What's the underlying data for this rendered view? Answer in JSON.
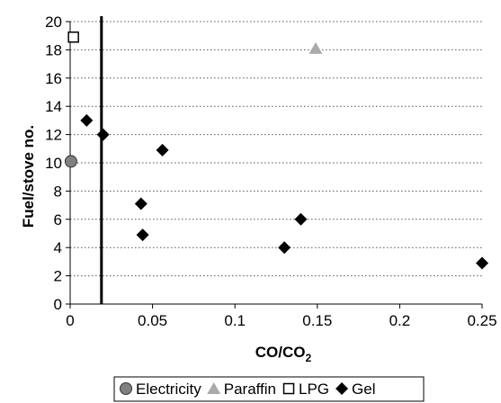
{
  "chart_data": {
    "type": "scatter",
    "xlabel_main": "CO/CO",
    "xlabel_sub": "2",
    "ylabel": "Fuel/stove no.",
    "xlim": [
      0,
      0.25
    ],
    "ylim": [
      0,
      20
    ],
    "x_ticks": [
      "0",
      "0.05",
      "0.1",
      "0.15",
      "0.2",
      "0.25"
    ],
    "y_ticks": [
      "0",
      "2",
      "4",
      "6",
      "8",
      "10",
      "12",
      "14",
      "16",
      "18",
      "20"
    ],
    "grid": "horizontal-dotted",
    "vertical_line_x": 0.019,
    "legend_position": "bottom",
    "series": [
      {
        "name": "Electricity",
        "marker": "circle",
        "color": "#808080",
        "points": [
          {
            "x": 0.0005,
            "y": 10.1
          }
        ]
      },
      {
        "name": "Paraffin",
        "marker": "triangle",
        "color": "#aaaaaa",
        "points": [
          {
            "x": 0.149,
            "y": 18.1
          }
        ]
      },
      {
        "name": "LPG",
        "marker": "square-open",
        "color": "#000000",
        "points": [
          {
            "x": 0.002,
            "y": 18.9
          }
        ]
      },
      {
        "name": "Gel",
        "marker": "diamond",
        "color": "#000000",
        "points": [
          {
            "x": 0.01,
            "y": 13.0
          },
          {
            "x": 0.02,
            "y": 12.0
          },
          {
            "x": 0.056,
            "y": 10.9
          },
          {
            "x": 0.043,
            "y": 7.1
          },
          {
            "x": 0.044,
            "y": 4.9
          },
          {
            "x": 0.14,
            "y": 6.0
          },
          {
            "x": 0.13,
            "y": 4.0
          },
          {
            "x": 0.25,
            "y": 2.9
          }
        ]
      }
    ]
  }
}
